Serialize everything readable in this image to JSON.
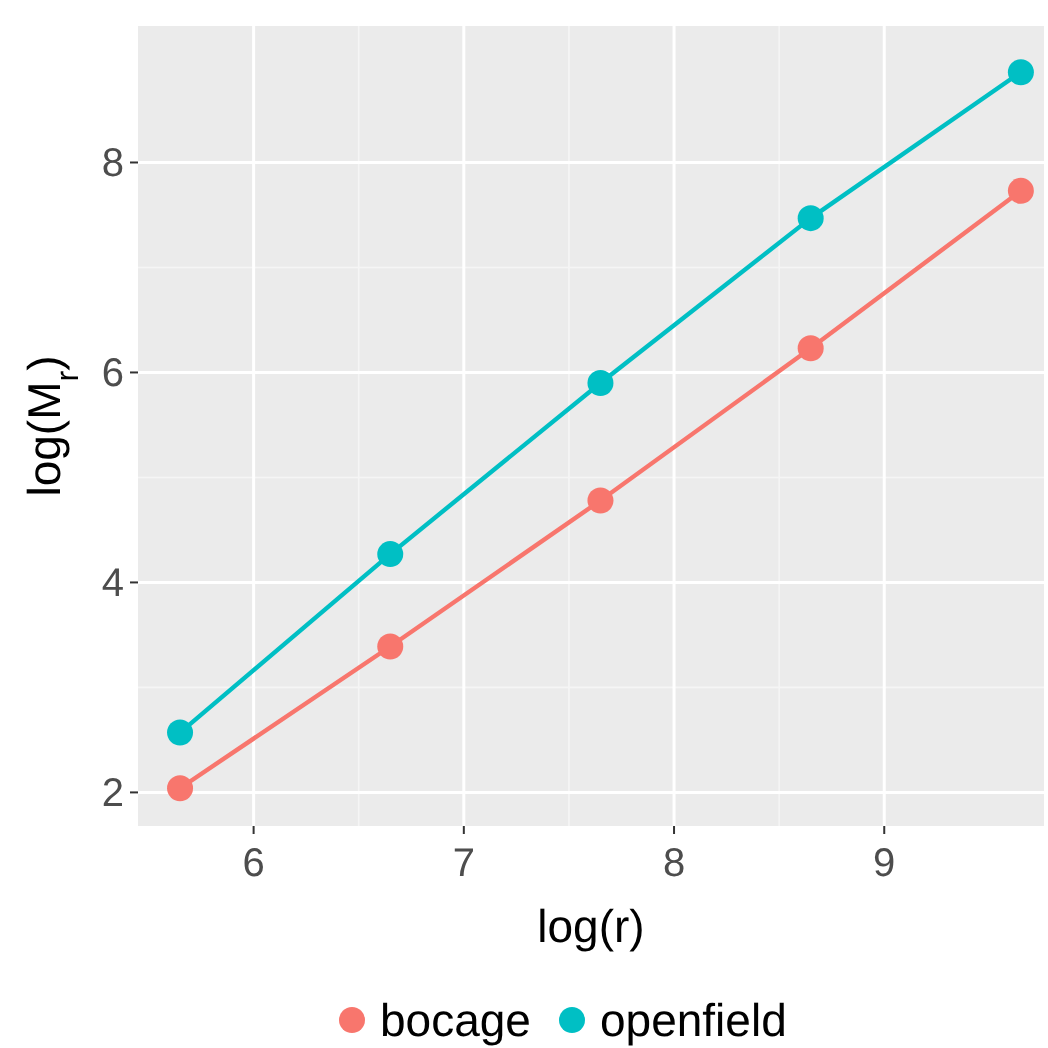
{
  "chart_data": {
    "type": "line",
    "xlabel": "log(r)",
    "ylabel": "log(M$_{r}$)",
    "x": [
      5.65,
      6.65,
      7.65,
      8.65,
      9.65
    ],
    "series": [
      {
        "name": "bocage",
        "color": "#f8766d",
        "values": [
          2.04,
          3.39,
          4.78,
          6.23,
          7.73
        ]
      },
      {
        "name": "openfield",
        "color": "#00bfc4",
        "values": [
          2.57,
          4.27,
          5.9,
          7.47,
          8.86
        ]
      }
    ],
    "xlim": [
      5.45,
      9.76
    ],
    "xticks": [
      6,
      7,
      8,
      9
    ],
    "ylim": [
      1.68,
      9.3
    ],
    "yticks": [
      2,
      4,
      6,
      8
    ],
    "grid": true,
    "legend": "bottom",
    "marker": "circle",
    "line_style": "solid"
  }
}
